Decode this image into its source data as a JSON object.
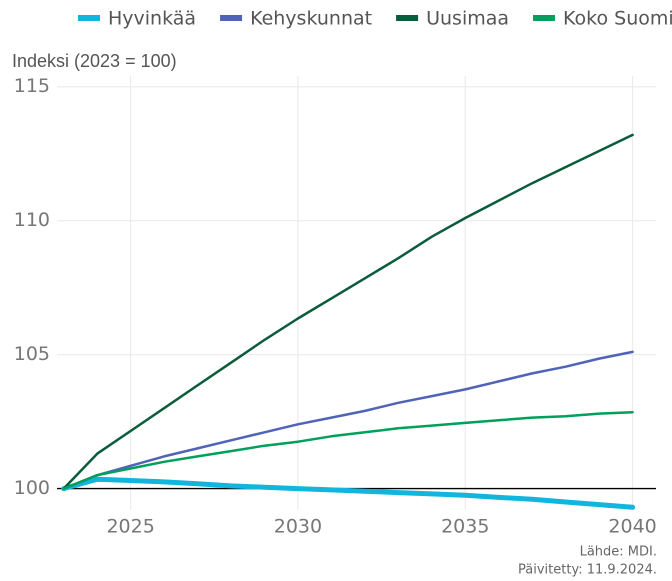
{
  "chart_data": {
    "type": "line",
    "title": "Indeksi (2023 = 100)",
    "source": "Lähde: MDI.",
    "updated": "Päivitetty: 11.9.2024.",
    "x": [
      2023,
      2024,
      2025,
      2026,
      2027,
      2028,
      2029,
      2030,
      2031,
      2032,
      2033,
      2034,
      2035,
      2036,
      2037,
      2038,
      2039,
      2040
    ],
    "series": [
      {
        "name": "Hyvinkää",
        "color": "#12b5dc",
        "width": 5,
        "values": [
          100,
          100.35,
          100.3,
          100.25,
          100.18,
          100.1,
          100.05,
          100.0,
          99.95,
          99.9,
          99.85,
          99.8,
          99.75,
          99.67,
          99.6,
          99.5,
          99.4,
          99.3
        ]
      },
      {
        "name": "Kehyskunnat",
        "color": "#4f63b8",
        "width": 2.5,
        "values": [
          100,
          100.5,
          100.85,
          101.2,
          101.5,
          101.8,
          102.1,
          102.4,
          102.65,
          102.9,
          103.2,
          103.45,
          103.7,
          104.0,
          104.3,
          104.55,
          104.85,
          105.1
        ]
      },
      {
        "name": "Uusimaa",
        "color": "#0b5c3b",
        "width": 2.5,
        "values": [
          100,
          101.3,
          102.15,
          103.0,
          103.85,
          104.7,
          105.55,
          106.35,
          107.1,
          107.85,
          108.6,
          109.4,
          110.1,
          110.75,
          111.4,
          112.0,
          112.6,
          113.2
        ]
      },
      {
        "name": "Koko Suomi",
        "color": "#00a05c",
        "width": 2.5,
        "values": [
          100,
          100.5,
          100.75,
          101.0,
          101.2,
          101.4,
          101.6,
          101.75,
          101.95,
          102.1,
          102.25,
          102.35,
          102.45,
          102.55,
          102.65,
          102.7,
          102.8,
          102.85
        ]
      }
    ],
    "xlim": [
      2022.8,
      2040.7
    ],
    "xticks": [
      2025,
      2030,
      2035,
      2040
    ],
    "ylim": [
      99.2,
      115.4
    ],
    "yticks": [
      100,
      105,
      110,
      115
    ],
    "reference_line": 100,
    "grid": true,
    "legend": "top"
  }
}
